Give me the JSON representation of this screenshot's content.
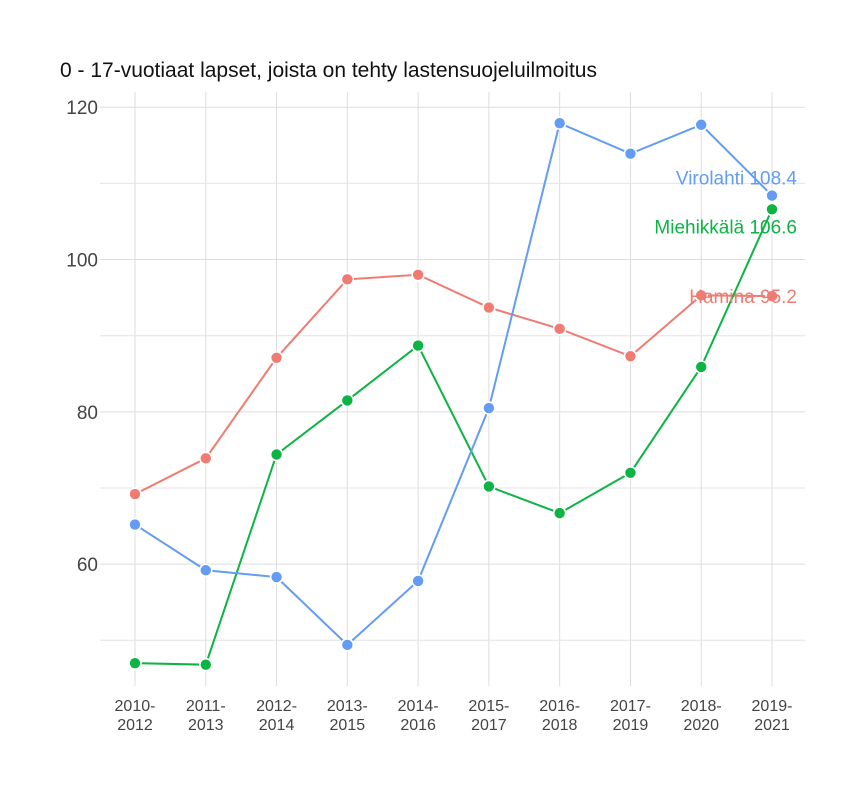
{
  "chart_data": {
    "type": "line",
    "title": "0 - 17-vuotiaat lapset, joista on tehty lastensuojeluilmoitus",
    "xlabel": "",
    "ylabel": "",
    "ylim": [
      44,
      122
    ],
    "yticks": [
      60,
      80,
      100,
      120
    ],
    "grid": true,
    "categories": [
      [
        "2010-",
        "2012"
      ],
      [
        "2011-",
        "2013"
      ],
      [
        "2012-",
        "2014"
      ],
      [
        "2013-",
        "2015"
      ],
      [
        "2014-",
        "2016"
      ],
      [
        "2015-",
        "2017"
      ],
      [
        "2016-",
        "2018"
      ],
      [
        "2017-",
        "2019"
      ],
      [
        "2018-",
        "2020"
      ],
      [
        "2019-",
        "2021"
      ]
    ],
    "series": [
      {
        "name": "Hamina",
        "color": "#f07b72",
        "values": [
          69.2,
          73.9,
          87.1,
          97.4,
          98.0,
          93.7,
          90.9,
          87.3,
          95.3,
          95.2
        ],
        "end_label": "Hamina 95.2"
      },
      {
        "name": "Miehikkälä",
        "color": "#0cb443",
        "values": [
          47.0,
          46.8,
          74.4,
          81.5,
          88.7,
          70.2,
          66.7,
          72.0,
          85.9,
          106.6
        ],
        "end_label": "Miehikkälä 106.6"
      },
      {
        "name": "Virolahti",
        "color": "#629cf4",
        "values": [
          65.2,
          59.2,
          58.3,
          49.4,
          57.8,
          80.5,
          117.9,
          113.9,
          117.7,
          108.4
        ],
        "end_label": "Virolahti 108.4"
      }
    ]
  }
}
